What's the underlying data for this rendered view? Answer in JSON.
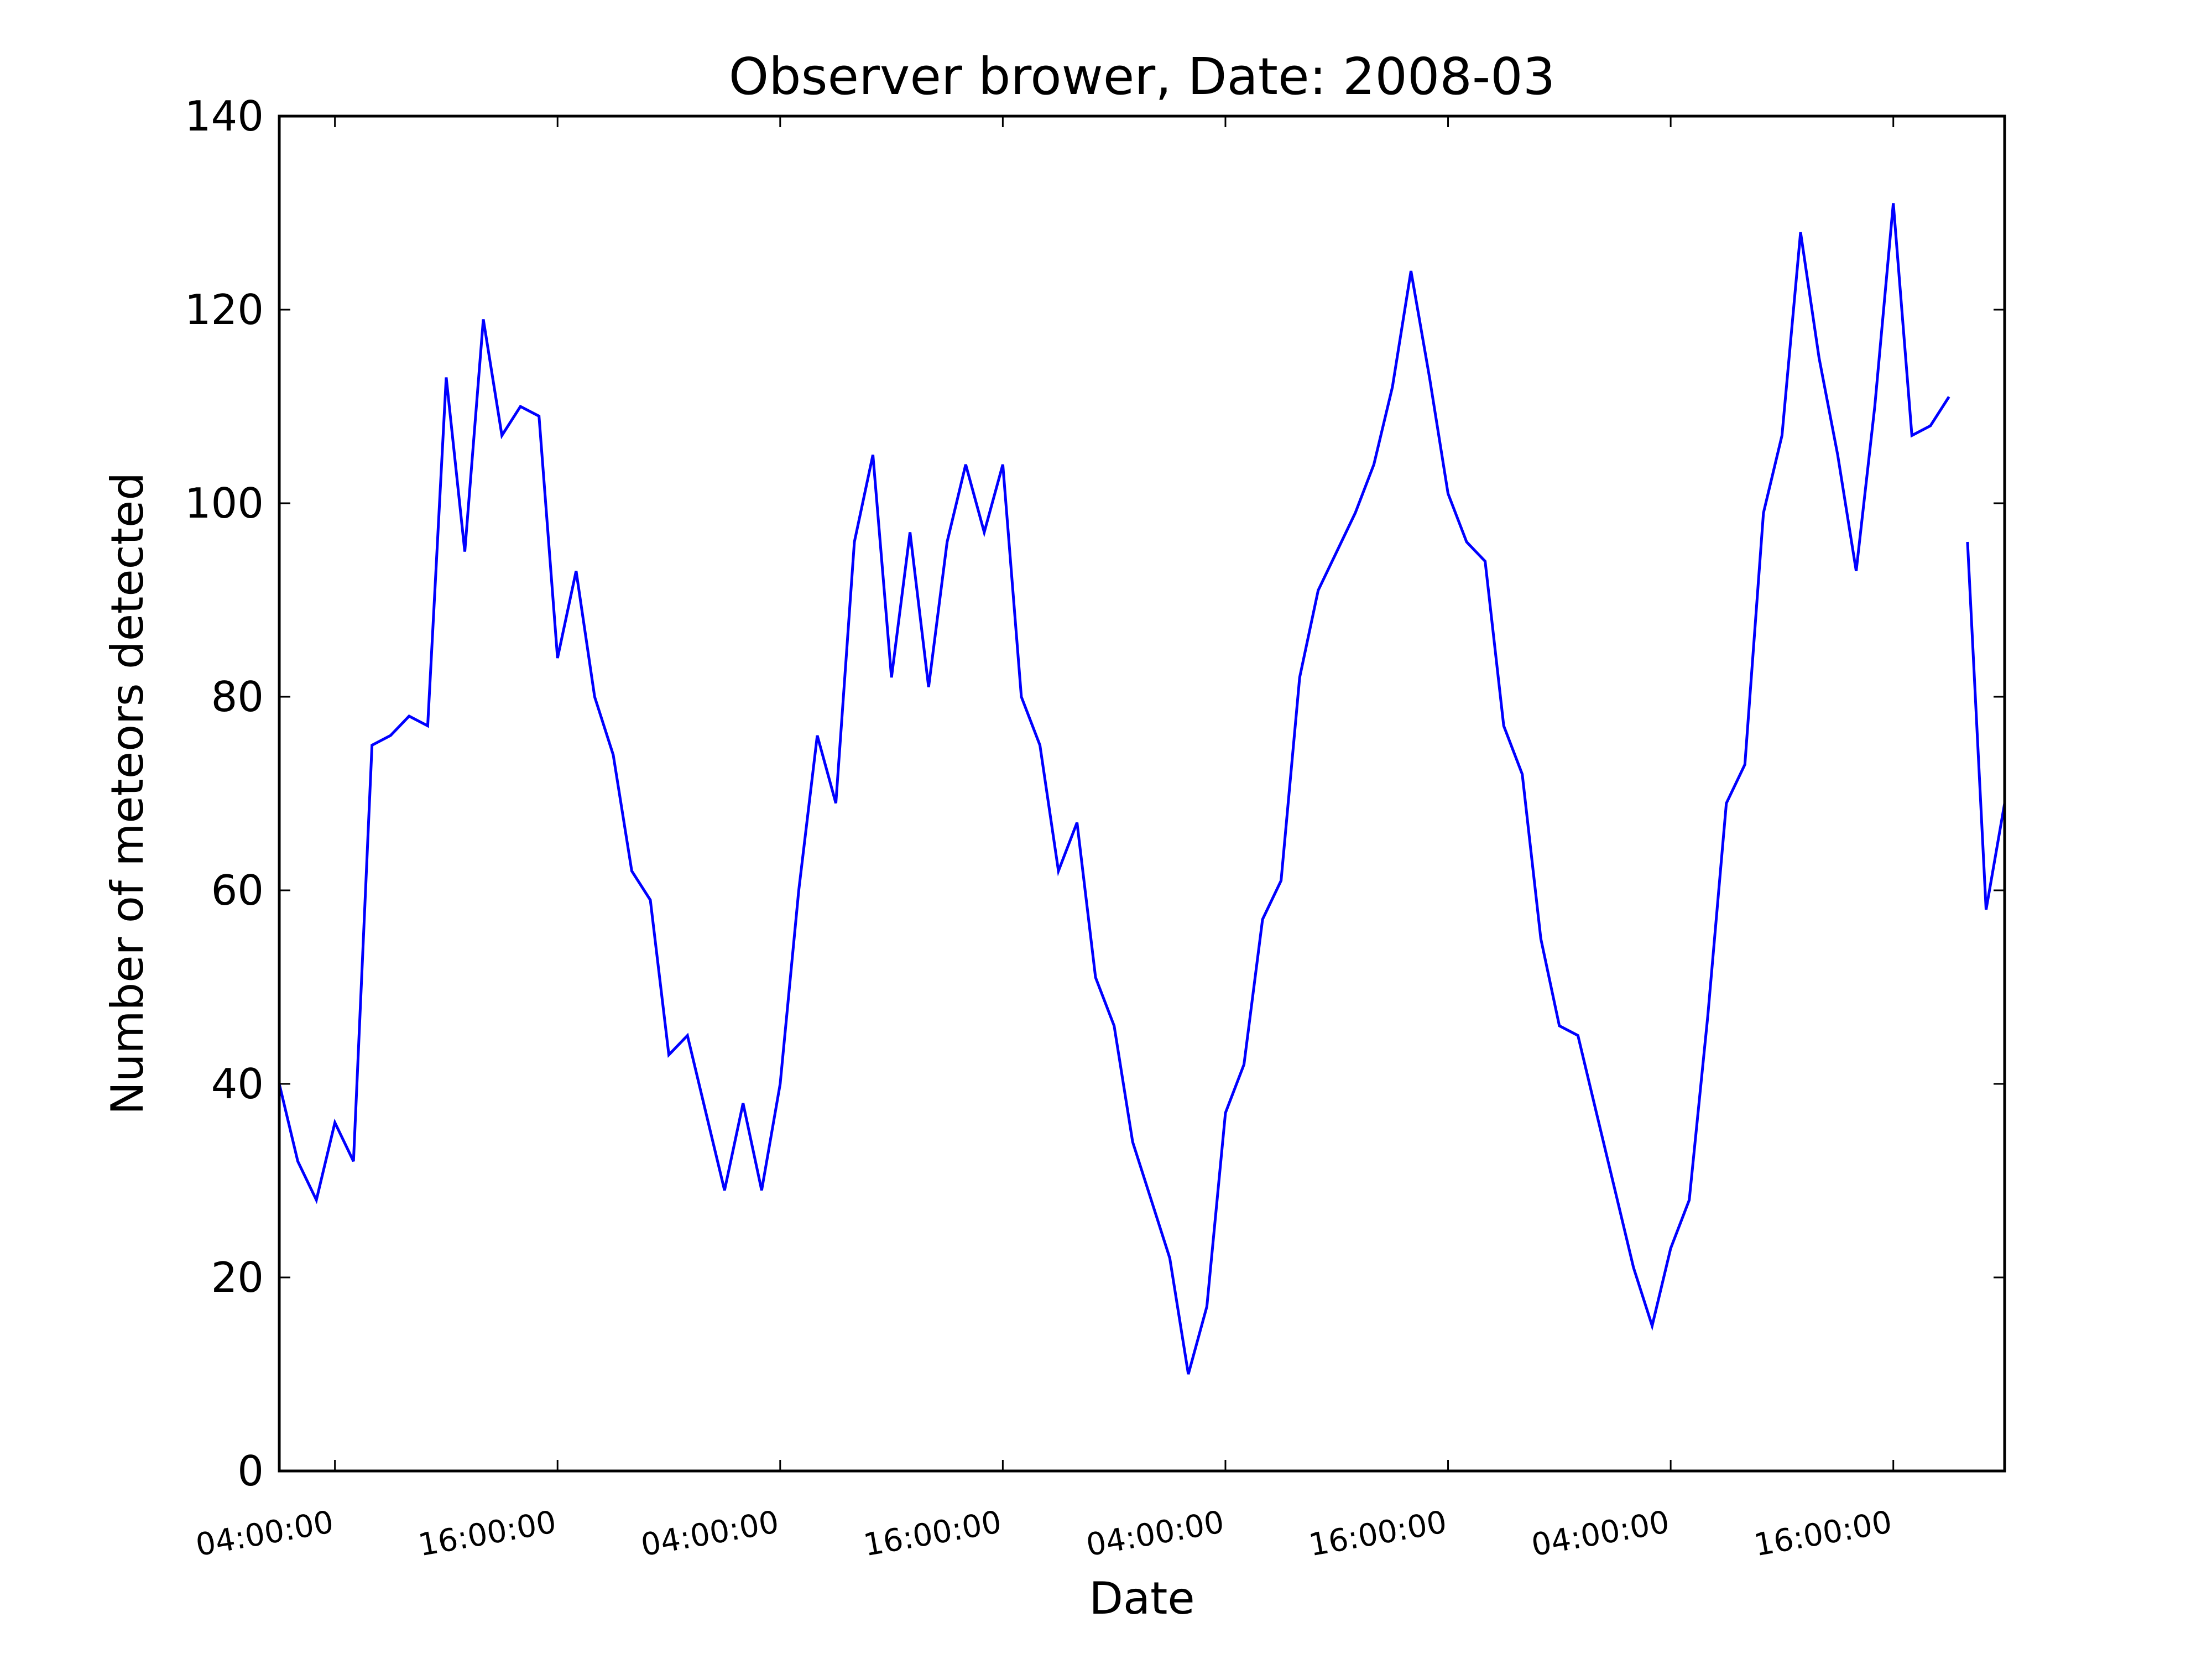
{
  "chart_data": {
    "type": "line",
    "title": "Observer brower, Date: 2008-03",
    "xlabel": "Date",
    "ylabel": "Number of meteors detected",
    "ylim": [
      0,
      140
    ],
    "yticks": [
      0,
      20,
      40,
      60,
      80,
      100,
      120,
      140
    ],
    "x_range_hours": [
      1,
      94
    ],
    "xtick_hours": [
      4,
      16,
      28,
      40,
      52,
      64,
      76,
      88
    ],
    "xtick_labels": [
      "04:00:00",
      "16:00:00",
      "04:00:00",
      "16:00:00",
      "04:00:00",
      "16:00:00",
      "04:00:00",
      "16:00:00"
    ],
    "grid": false,
    "series": [
      {
        "color": "#0000ff",
        "segments": [
          {
            "x": [
              1,
              2,
              3,
              4,
              5,
              6,
              7,
              8,
              9,
              10,
              11,
              12,
              13,
              14,
              15,
              16,
              17,
              18,
              19,
              20,
              21,
              22,
              23,
              24,
              25,
              26,
              27,
              28,
              29,
              30,
              31,
              32,
              33,
              34,
              35,
              36,
              37,
              38,
              39,
              40,
              41,
              42,
              43,
              44,
              45,
              46,
              47,
              48,
              49,
              50,
              51,
              52,
              53,
              54,
              55,
              56,
              57,
              58,
              59,
              60,
              61,
              62,
              63,
              64,
              65,
              66,
              67,
              68,
              69,
              70,
              71,
              72,
              73,
              74,
              75,
              76,
              77,
              78,
              79,
              80,
              81,
              82,
              83,
              84,
              85,
              86,
              87,
              88,
              89,
              90,
              91
            ],
            "y": [
              40,
              32,
              28,
              36,
              32,
              75,
              76,
              78,
              77,
              113,
              95,
              119,
              107,
              110,
              109,
              84,
              93,
              80,
              74,
              62,
              59,
              43,
              45,
              37,
              29,
              38,
              29,
              40,
              60,
              76,
              69,
              96,
              105,
              82,
              97,
              81,
              96,
              104,
              97,
              104,
              80,
              75,
              62,
              67,
              51,
              46,
              34,
              28,
              22,
              10,
              17,
              37,
              42,
              57,
              61,
              82,
              91,
              95,
              99,
              104,
              112,
              124,
              113,
              101,
              96,
              94,
              77,
              72,
              55,
              46,
              45,
              37,
              29,
              21,
              15,
              23,
              28,
              47,
              69,
              73,
              99,
              107,
              128,
              115,
              105,
              93,
              110,
              131,
              107,
              108,
              111
            ]
          },
          {
            "x": [
              92,
              93,
              94
            ],
            "y": [
              96,
              58,
              69
            ]
          }
        ]
      }
    ]
  }
}
